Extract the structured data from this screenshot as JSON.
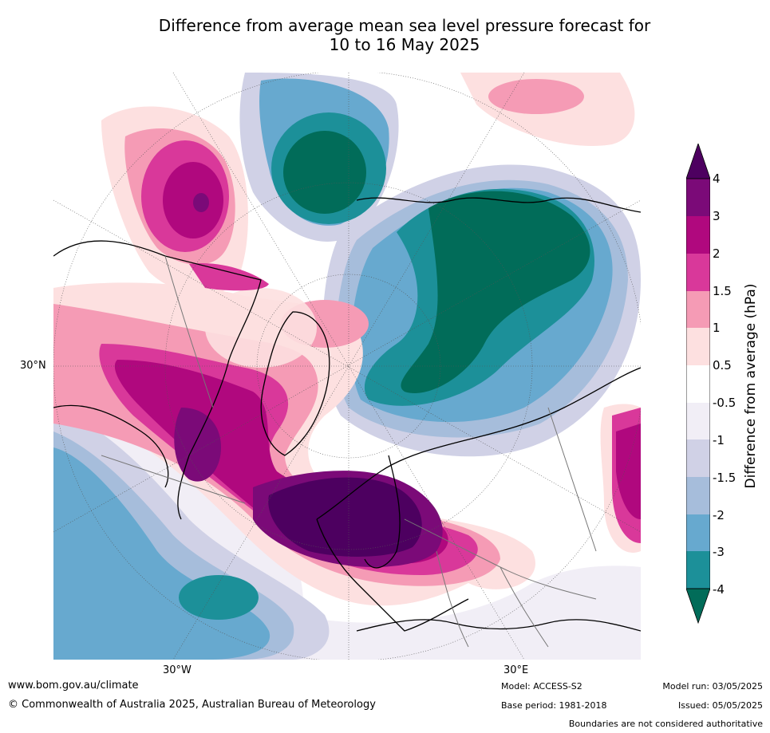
{
  "title": {
    "line1": "Difference from average mean sea level pressure forecast for",
    "line2": "10 to 16 May 2025"
  },
  "map": {
    "projection": "polar-stereographic-north",
    "lat_labels": [
      "30°N"
    ],
    "lon_labels": [
      "30°W",
      "30°E"
    ],
    "colors": {
      "dark_purple": "#4d0060",
      "purple": "#7b0a78",
      "magenta": "#b0087e",
      "pink_strong": "#d9389a",
      "pink": "#f59bb5",
      "pink_light": "#fde0e0",
      "white": "#ffffff",
      "lavender_light": "#f1eef6",
      "lavender": "#d0d1e6",
      "blue_light": "#a6bddb",
      "blue": "#67a9cf",
      "teal": "#1c9099",
      "dark_teal": "#016c59"
    }
  },
  "colorbar": {
    "title": "Difference from average (hPa)",
    "ticks": [
      "4",
      "3",
      "2",
      "1.5",
      "1",
      "0.5",
      "-0.5",
      "-1",
      "-1.5",
      "-2",
      "-3",
      "-4"
    ]
  },
  "footer": {
    "website": "www.bom.gov.au/climate",
    "copyright": "© Commonwealth of Australia 2025, Australian Bureau of Meteorology",
    "model": "Model: ACCESS-S2",
    "base_period": "Base period: 1981-2018",
    "model_run": "Model run: 03/05/2025",
    "issued": "Issued: 05/05/2025",
    "disclaimer": "Boundaries are not considered authoritative"
  }
}
